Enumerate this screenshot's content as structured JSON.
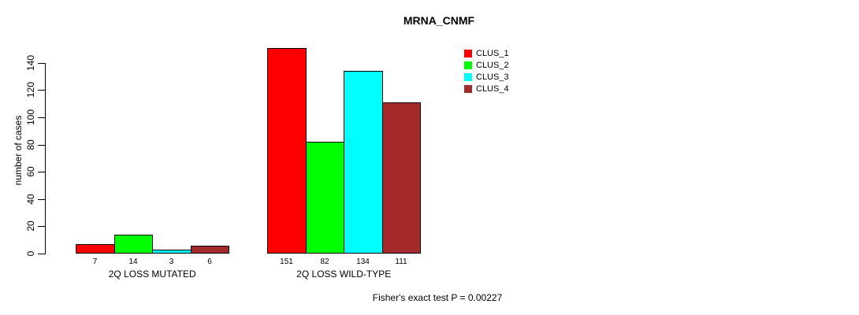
{
  "chart_data": {
    "type": "bar",
    "title": "MRNA_CNMF",
    "ylabel": "number of cases",
    "xlabel": "",
    "categories": [
      "2Q LOSS MUTATED",
      "2Q LOSS WILD-TYPE"
    ],
    "series": [
      {
        "name": "CLUS_1",
        "color": "#ff0000",
        "values": [
          7,
          151
        ]
      },
      {
        "name": "CLUS_2",
        "color": "#00ff00",
        "values": [
          14,
          82
        ]
      },
      {
        "name": "CLUS_3",
        "color": "#00ffff",
        "values": [
          3,
          134
        ]
      },
      {
        "name": "CLUS_4",
        "color": "#a52a2a",
        "values": [
          6,
          111
        ]
      }
    ],
    "yticks": [
      0,
      20,
      40,
      60,
      80,
      100,
      120,
      140
    ],
    "ylim": [
      0,
      155
    ],
    "grid": false,
    "legend_position": "right",
    "bar_border_color": "#000000",
    "annotation": "Fisher's exact test P = 0.00227"
  }
}
